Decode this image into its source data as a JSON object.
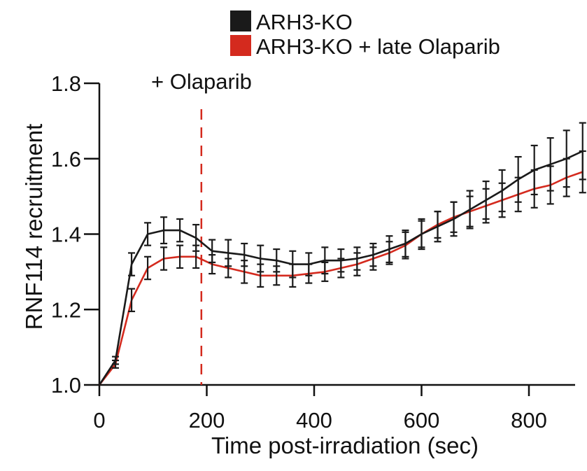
{
  "chart_data": {
    "type": "line",
    "title": "",
    "xlabel": "Time post-irradiation (sec)",
    "ylabel": "RNF114 recruitment",
    "xlim": [
      0,
      900
    ],
    "ylim": [
      1.0,
      1.8
    ],
    "x_ticks": [
      0,
      200,
      400,
      600,
      800
    ],
    "x_tick_labels": [
      "0",
      "200",
      "400",
      "600",
      "800"
    ],
    "y_ticks": [
      1.0,
      1.2,
      1.4,
      1.6,
      1.8
    ],
    "y_tick_labels": [
      "1.0",
      "1.2",
      "1.4",
      "1.6",
      "1.8"
    ],
    "grid": false,
    "legend_position": "top-right",
    "annotation": {
      "text": "+ Olaparib",
      "x": 190,
      "line_color": "#d42a1e"
    },
    "x": [
      0,
      30,
      60,
      90,
      120,
      150,
      180,
      210,
      240,
      270,
      300,
      330,
      360,
      390,
      420,
      450,
      480,
      510,
      540,
      570,
      600,
      630,
      660,
      690,
      720,
      750,
      780,
      810,
      840,
      870,
      900
    ],
    "series": [
      {
        "name": "ARH3-KO",
        "color": "#1a1a1a",
        "values": [
          1.0,
          1.065,
          1.32,
          1.4,
          1.41,
          1.41,
          1.39,
          1.355,
          1.35,
          1.345,
          1.335,
          1.33,
          1.32,
          1.32,
          1.33,
          1.33,
          1.335,
          1.345,
          1.36,
          1.375,
          1.4,
          1.42,
          1.44,
          1.465,
          1.49,
          1.515,
          1.545,
          1.57,
          1.585,
          1.6,
          1.62
        ],
        "errors": [
          0.0,
          0.01,
          0.03,
          0.03,
          0.035,
          0.03,
          0.035,
          0.03,
          0.035,
          0.03,
          0.035,
          0.03,
          0.035,
          0.03,
          0.035,
          0.03,
          0.03,
          0.03,
          0.035,
          0.035,
          0.04,
          0.04,
          0.045,
          0.05,
          0.05,
          0.055,
          0.06,
          0.065,
          0.07,
          0.075,
          0.075
        ]
      },
      {
        "name": "ARH3-KO + late Olaparib",
        "color": "#d42a1e",
        "values": [
          1.0,
          1.055,
          1.225,
          1.31,
          1.335,
          1.34,
          1.34,
          1.32,
          1.31,
          1.3,
          1.29,
          1.29,
          1.29,
          1.295,
          1.3,
          1.31,
          1.32,
          1.335,
          1.35,
          1.37,
          1.4,
          1.425,
          1.445,
          1.46,
          1.475,
          1.49,
          1.505,
          1.52,
          1.53,
          1.55,
          1.565
        ],
        "errors": [
          0.0,
          0.01,
          0.03,
          0.03,
          0.03,
          0.03,
          0.03,
          0.025,
          0.025,
          0.03,
          0.03,
          0.025,
          0.03,
          0.025,
          0.025,
          0.025,
          0.03,
          0.03,
          0.03,
          0.035,
          0.035,
          0.035,
          0.04,
          0.04,
          0.045,
          0.045,
          0.045,
          0.05,
          0.05,
          0.05,
          0.055
        ]
      }
    ]
  }
}
